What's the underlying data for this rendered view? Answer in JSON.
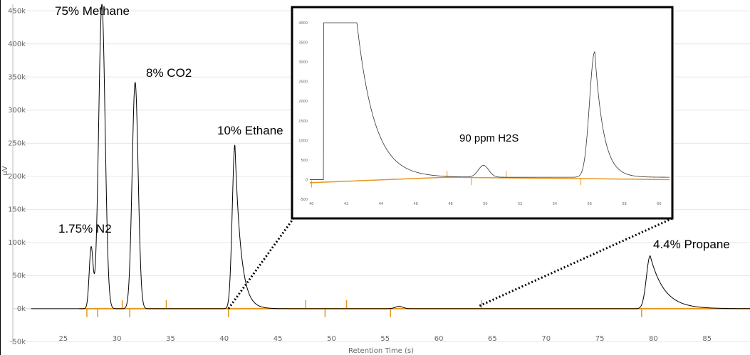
{
  "chart_data": [
    {
      "type": "line",
      "xlabel": "Retention Time (s)",
      "ylabel": "µV",
      "xlim": [
        20.3,
        89
      ],
      "ylim": [
        -55000,
        460000
      ],
      "x_ticks": [
        25,
        30,
        35,
        40,
        45,
        50,
        55,
        60,
        65,
        70,
        75,
        80,
        85
      ],
      "y_ticks": [
        -50000,
        0,
        50000,
        100000,
        150000,
        200000,
        250000,
        300000,
        350000,
        400000,
        450000
      ],
      "y_tick_labels": [
        "-50k",
        "0k",
        "50k",
        "100k",
        "150k",
        "200k",
        "250k",
        "300k",
        "350k",
        "400k",
        "450k"
      ],
      "grid": "horizontal",
      "colors": {
        "signal": "#000000",
        "baseline": "#e8961e",
        "grid": "#e6e6e6"
      },
      "series": [
        {
          "peaks": [
            {
              "rt": 27.6,
              "height": 92000,
              "sigma": 0.18,
              "tail": 0.0
            },
            {
              "rt": 28.6,
              "height": 460000,
              "sigma": 0.3,
              "tail": 0.0
            },
            {
              "rt": 31.7,
              "height": 342000,
              "sigma": 0.28,
              "tail": 0.0
            },
            {
              "rt": 41.0,
              "height": 248000,
              "sigma": 0.25,
              "tail": 0.55
            },
            {
              "rt": 56.3,
              "height": 3500,
              "sigma": 0.35,
              "tail": 0.0
            },
            {
              "rt": 79.7,
              "height": 80000,
              "sigma": 0.35,
              "tail": 1.3
            }
          ]
        }
      ],
      "baseline_markers": [
        {
          "x": 27.2,
          "dir": "down"
        },
        {
          "x": 28.2,
          "dir": "down"
        },
        {
          "x": 30.5,
          "dir": "up"
        },
        {
          "x": 31.2,
          "dir": "down"
        },
        {
          "x": 34.6,
          "dir": "up"
        },
        {
          "x": 40.4,
          "dir": "down"
        },
        {
          "x": 47.6,
          "dir": "up"
        },
        {
          "x": 49.4,
          "dir": "down"
        },
        {
          "x": 51.4,
          "dir": "up"
        },
        {
          "x": 55.5,
          "dir": "down"
        },
        {
          "x": 64.0,
          "dir": "up"
        },
        {
          "x": 78.9,
          "dir": "down"
        }
      ],
      "annotations": [
        {
          "text": "75% Methane",
          "x": 28.6,
          "y": 460000
        },
        {
          "text": "8% CO2",
          "x": 31.7,
          "y": 342000
        },
        {
          "text": "10% Ethane",
          "x": 41.0,
          "y": 248000
        },
        {
          "text": "1.75% N2",
          "x": 27.6,
          "y": 92000
        },
        {
          "text": "4.4% Propane",
          "x": 79.7,
          "y": 80000
        }
      ],
      "zoom_range": [
        40.4,
        63.8
      ]
    },
    {
      "type": "line",
      "role": "zoom-inset",
      "xlim": [
        39.7,
        60.6
      ],
      "ylim": [
        -500,
        4000
      ],
      "x_ticks": [
        40,
        42,
        44,
        46,
        48,
        50,
        52,
        54,
        56,
        58,
        60
      ],
      "y_ticks": [
        -500,
        0,
        500,
        1000,
        1500,
        2000,
        2500,
        3000,
        3500,
        4000
      ],
      "series": [
        {
          "peaks": [
            {
              "rt": 41.7,
              "height": 4000,
              "sigma": 0.0,
              "tail": 1.5
            },
            {
              "rt": 49.9,
              "height": 300,
              "sigma": 0.3,
              "tail": 0.0
            },
            {
              "rt": 56.3,
              "height": 3200,
              "sigma": 0.3,
              "tail": 0.5
            }
          ]
        }
      ],
      "baseline_markers": [
        {
          "x": 40.0,
          "dir": "down"
        },
        {
          "x": 47.8,
          "dir": "up"
        },
        {
          "x": 49.2,
          "dir": "down"
        },
        {
          "x": 51.2,
          "dir": "up"
        },
        {
          "x": 55.5,
          "dir": "down"
        }
      ],
      "annotations": [
        {
          "text": "90 ppm H2S",
          "x": 49.9,
          "y": 1000
        }
      ]
    }
  ]
}
